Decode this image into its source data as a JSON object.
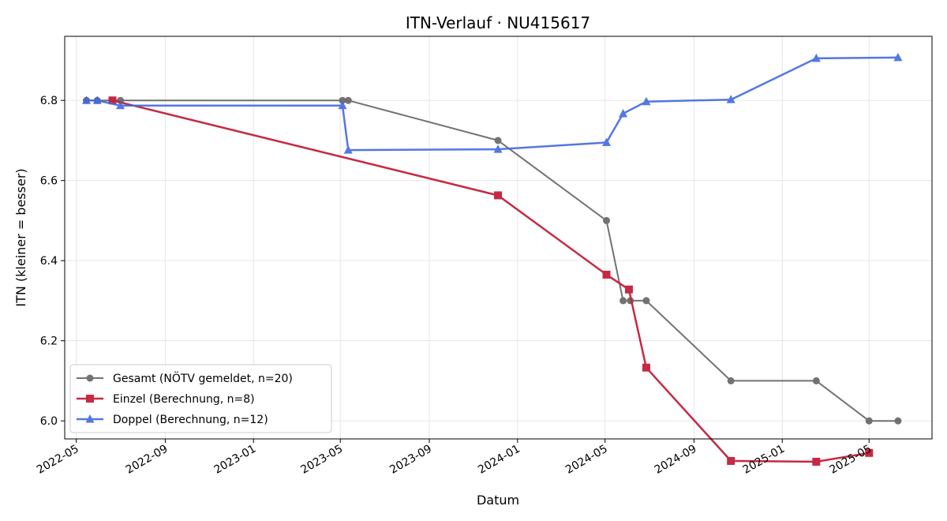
{
  "chart_data": {
    "type": "line",
    "title": "ITN-Verlauf · NU415617",
    "xlabel": "Datum",
    "ylabel": "ITN  (kleiner = besser)",
    "x_axis": "date",
    "xlim": [
      "2022-04-15",
      "2025-07-27"
    ],
    "ylim": [
      5.955,
      6.96
    ],
    "x_ticks": [
      "2022-05-01",
      "2022-09-01",
      "2023-01-01",
      "2023-05-01",
      "2023-09-01",
      "2024-01-01",
      "2024-05-01",
      "2024-09-01",
      "2025-01-01",
      "2025-05-01"
    ],
    "x_tick_labels": [
      "2022-05",
      "2022-09",
      "2023-01",
      "2023-05",
      "2023-09",
      "2024-01",
      "2024-05",
      "2024-09",
      "2025-01",
      "2025-05"
    ],
    "y_ticks": [
      6.0,
      6.2,
      6.4,
      6.6,
      6.8
    ],
    "y_tick_labels": [
      "6.0",
      "6.2",
      "6.4",
      "6.6",
      "6.8"
    ],
    "grid": true,
    "legend_position": "lower-left",
    "series": [
      {
        "name": "Gesamt (NÖTV gemeldet, n=20)",
        "color": "#444444",
        "marker": "circle",
        "points": [
          [
            "2022-05-15",
            6.8
          ],
          [
            "2022-05-30",
            6.8
          ],
          [
            "2022-07-01",
            6.8
          ],
          [
            "2023-05-04",
            6.8
          ],
          [
            "2023-05-12",
            6.8
          ],
          [
            "2023-12-05",
            6.7
          ],
          [
            "2024-05-03",
            6.5
          ],
          [
            "2024-05-26",
            6.3
          ],
          [
            "2024-06-05",
            6.3
          ],
          [
            "2024-06-27",
            6.3
          ],
          [
            "2024-10-22",
            6.1
          ],
          [
            "2025-02-17",
            6.1
          ],
          [
            "2025-05-01",
            6.0
          ],
          [
            "2025-06-10",
            6.0
          ]
        ]
      },
      {
        "name": "Einzel (Berechnung, n=8)",
        "color": "#c41e3a",
        "marker": "square",
        "points": [
          [
            "2022-06-20",
            6.8
          ],
          [
            "2023-12-05",
            6.563
          ],
          [
            "2024-05-03",
            6.365
          ],
          [
            "2024-06-03",
            6.328
          ],
          [
            "2024-06-27",
            6.133
          ],
          [
            "2024-10-22",
            5.9
          ],
          [
            "2025-02-17",
            5.898
          ],
          [
            "2025-05-01",
            5.92
          ]
        ]
      },
      {
        "name": "Doppel (Berechnung, n=12)",
        "color": "#4169e1",
        "marker": "triangle",
        "points": [
          [
            "2022-05-15",
            6.8
          ],
          [
            "2022-05-30",
            6.8
          ],
          [
            "2022-07-01",
            6.787
          ],
          [
            "2023-05-04",
            6.787
          ],
          [
            "2023-05-12",
            6.676
          ],
          [
            "2023-12-05",
            6.678
          ],
          [
            "2024-05-03",
            6.695
          ],
          [
            "2024-05-26",
            6.767
          ],
          [
            "2024-06-27",
            6.797
          ],
          [
            "2024-10-22",
            6.802
          ],
          [
            "2025-02-17",
            6.905
          ],
          [
            "2025-06-10",
            6.907
          ]
        ]
      }
    ]
  }
}
